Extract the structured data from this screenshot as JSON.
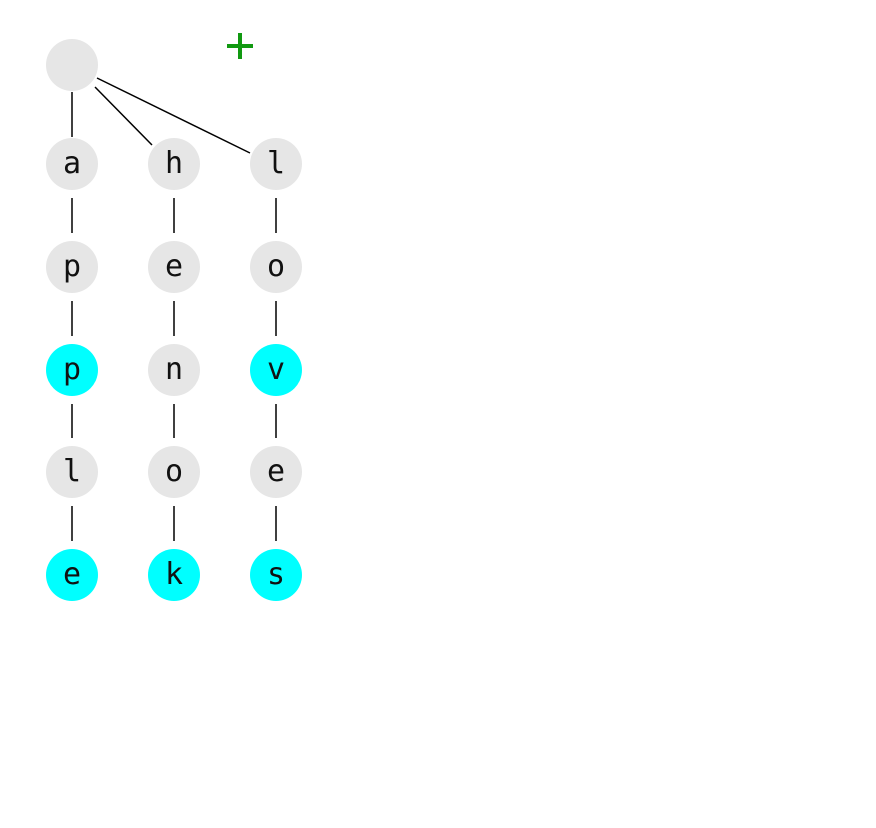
{
  "colors": {
    "normal_node": "#e6e6e6",
    "terminal_node": "#00ffff",
    "edge": "#000000",
    "add_icon": "#119911"
  },
  "icons": {
    "add": "plus-icon"
  },
  "trie": {
    "root": {
      "label": ""
    },
    "branches": [
      {
        "id": "a",
        "nodes": [
          {
            "label": "a",
            "terminal": false
          },
          {
            "label": "p",
            "terminal": false
          },
          {
            "label": "p",
            "terminal": true
          },
          {
            "label": "l",
            "terminal": false
          },
          {
            "label": "e",
            "terminal": true
          }
        ]
      },
      {
        "id": "h",
        "nodes": [
          {
            "label": "h",
            "terminal": false
          },
          {
            "label": "e",
            "terminal": false
          },
          {
            "label": "n",
            "terminal": false
          },
          {
            "label": "o",
            "terminal": false
          },
          {
            "label": "k",
            "terminal": true
          }
        ]
      },
      {
        "id": "l",
        "nodes": [
          {
            "label": "l",
            "terminal": false
          },
          {
            "label": "o",
            "terminal": false
          },
          {
            "label": "v",
            "terminal": true
          },
          {
            "label": "e",
            "terminal": false
          },
          {
            "label": "s",
            "terminal": true
          }
        ]
      }
    ]
  }
}
